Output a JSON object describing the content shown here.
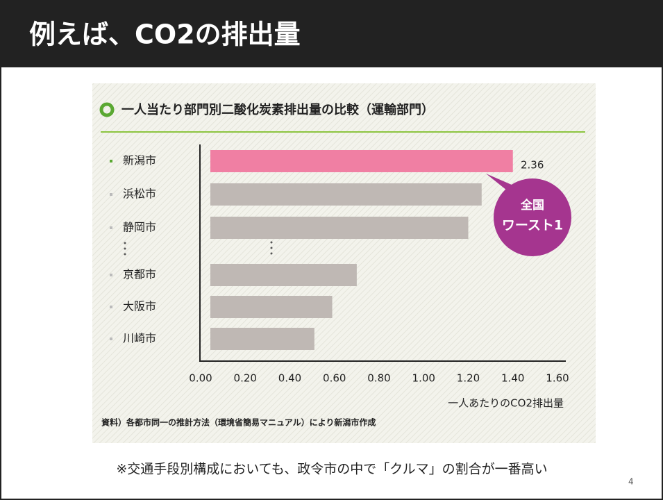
{
  "slide": {
    "title": "例えば、CO2の排出量",
    "note": "※交通手段別構成においても、政令市の中で「クルマ」の割合が一番高い",
    "page_number": "4"
  },
  "chart_data": {
    "type": "bar",
    "orientation": "horizontal",
    "title": "一人当たり部門別二酸化炭素排出量の比較（運輸部門）",
    "categories": [
      "新潟市",
      "浜松市",
      "静岡市",
      "京都市",
      "大阪市",
      "川崎市"
    ],
    "values": [
      1.4,
      1.26,
      1.2,
      0.7,
      0.59,
      0.51
    ],
    "colors": [
      "#f07fa3",
      "#bfb8b4",
      "#bfb8b4",
      "#bfb8b4",
      "#bfb8b4",
      "#bfb8b4"
    ],
    "xlim": [
      0,
      1.6
    ],
    "xticks": [
      {
        "value": 0,
        "label": "0.00"
      },
      {
        "value": 0.2,
        "label": "0.20"
      },
      {
        "value": 0.4,
        "label": "0.40"
      },
      {
        "value": 0.6,
        "label": "0.60"
      },
      {
        "value": 0.8,
        "label": "0.80"
      },
      {
        "value": 1.0,
        "label": "1.00"
      },
      {
        "value": 1.2,
        "label": "1.20"
      },
      {
        "value": 1.4,
        "label": "1.40"
      },
      {
        "value": 1.6,
        "label": "1.60"
      }
    ],
    "xlabel": "一人あたりのCO2排出量",
    "annotations": [
      "2.36",
      "全国",
      "ワースト1"
    ],
    "source": "資料）各都市同一の推計方法（環境省簡易マニュアル）により新潟市作成"
  }
}
